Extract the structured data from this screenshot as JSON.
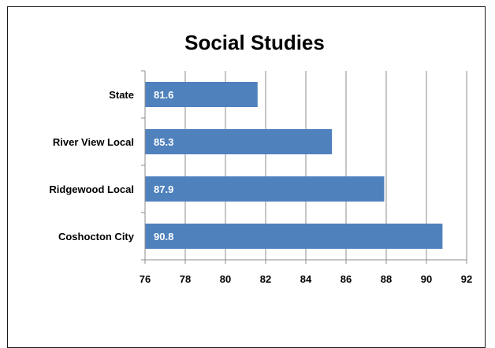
{
  "chart_data": {
    "type": "bar",
    "orientation": "horizontal",
    "title": "Social Studies",
    "categories": [
      "State",
      "River View Local",
      "Ridgewood Local",
      "Coshocton City"
    ],
    "values": [
      81.6,
      85.3,
      87.9,
      90.8
    ],
    "data_labels": [
      "81.6",
      "85.3",
      "87.9",
      "90.8"
    ],
    "xlim": [
      76,
      92
    ],
    "xticks": [
      "76",
      "78",
      "80",
      "82",
      "84",
      "86",
      "88",
      "90",
      "92"
    ],
    "grid": "vertical",
    "legend": "none",
    "bar_color": "#4f81bd"
  }
}
